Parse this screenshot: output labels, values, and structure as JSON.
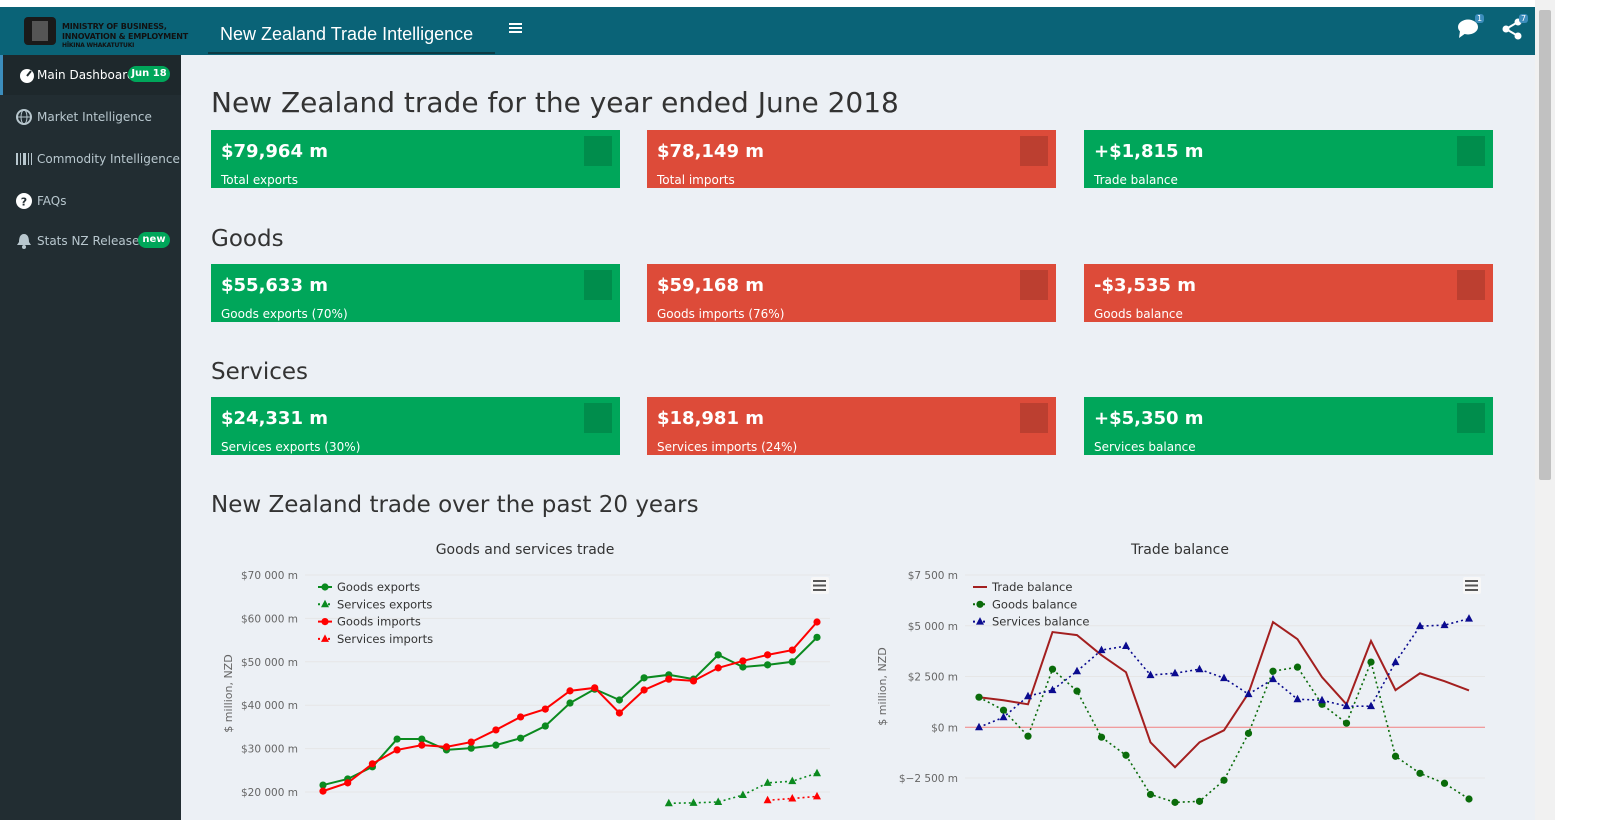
{
  "header": {
    "logo_lines": [
      "MINISTRY OF BUSINESS,",
      "INNOVATION & EMPLOYMENT",
      "HĪKINA WHAKATUTUKI"
    ],
    "app_title": "New Zealand Trade Intelligence",
    "notifications": "1",
    "shares": "7"
  },
  "sidebar": {
    "items": [
      {
        "label": "Main Dashboard",
        "badge": "Jun 18"
      },
      {
        "label": "Market Intelligence"
      },
      {
        "label": "Commodity Intelligence"
      },
      {
        "label": "FAQs"
      },
      {
        "label": "Stats NZ Releases",
        "badge": "new"
      }
    ]
  },
  "dashboard": {
    "title": "New Zealand trade for the year ended June 2018",
    "sections": [
      {
        "cards": [
          {
            "value": "$79,964 m",
            "label": "Total exports",
            "color": "#00a65a"
          },
          {
            "value": "$78,149 m",
            "label": "Total imports",
            "color": "#dd4b39"
          },
          {
            "value": "+$1,815 m",
            "label": "Trade balance",
            "color": "#00a65a"
          }
        ]
      },
      {
        "heading": "Goods",
        "cards": [
          {
            "value": "$55,633 m",
            "label": "Goods exports (70%)",
            "color": "#00a65a"
          },
          {
            "value": "$59,168 m",
            "label": "Goods imports (76%)",
            "color": "#dd4b39"
          },
          {
            "value": "-$3,535 m",
            "label": "Goods balance",
            "color": "#dd4b39"
          }
        ]
      },
      {
        "heading": "Services",
        "cards": [
          {
            "value": "$24,331 m",
            "label": "Services exports (30%)",
            "color": "#00a65a"
          },
          {
            "value": "$18,981 m",
            "label": "Services imports (24%)",
            "color": "#dd4b39"
          },
          {
            "value": "+$5,350 m",
            "label": "Services balance",
            "color": "#00a65a"
          }
        ]
      }
    ],
    "charts_heading": "New Zealand trade over the past 20 years"
  },
  "chart_data": [
    {
      "type": "line",
      "title": "Goods and services trade",
      "y_label": "$ million, NZD",
      "grid": true,
      "categories": [
        null,
        null,
        null,
        null,
        null,
        null,
        null,
        null,
        null,
        null,
        null,
        null,
        null,
        null,
        null,
        null,
        null,
        null,
        null,
        null,
        null
      ],
      "ylim": [
        20000,
        70000
      ],
      "yticks": [
        {
          "value": 20000,
          "label": "$20 000 m"
        },
        {
          "value": 30000,
          "label": "$30 000 m"
        },
        {
          "value": 40000,
          "label": "$40 000 m"
        },
        {
          "value": 50000,
          "label": "$50 000 m"
        },
        {
          "value": 60000,
          "label": "$60 000 m"
        },
        {
          "value": 70000,
          "label": "$70 000 m"
        }
      ],
      "series": [
        {
          "name": "Goods exports",
          "color": "#0b8a1f",
          "marker": "circle",
          "dash": "solid",
          "values": [
            21600,
            23000,
            25800,
            32200,
            32200,
            29700,
            30100,
            30800,
            32400,
            35200,
            40500,
            43700,
            41200,
            46300,
            47000,
            46000,
            51600,
            48800,
            49300,
            50000,
            55633
          ]
        },
        {
          "name": "Services exports",
          "color": "#0b8a1f",
          "marker": "triangle",
          "dash": "dot",
          "values": [
            null,
            null,
            null,
            null,
            null,
            null,
            null,
            null,
            null,
            null,
            null,
            null,
            null,
            null,
            17400,
            17500,
            17700,
            19300,
            22100,
            22500,
            24331
          ]
        },
        {
          "name": "Goods imports",
          "color": "#ff0000",
          "marker": "circle",
          "dash": "solid",
          "values": [
            20200,
            22100,
            26500,
            29700,
            30800,
            30400,
            31500,
            34300,
            37300,
            39100,
            43300,
            44000,
            38200,
            43500,
            46000,
            45600,
            48600,
            50200,
            51600,
            52700,
            59168
          ]
        },
        {
          "name": "Services imports",
          "color": "#ff0000",
          "marker": "triangle",
          "dash": "dot",
          "values": [
            null,
            null,
            null,
            null,
            null,
            null,
            null,
            null,
            null,
            null,
            null,
            null,
            null,
            null,
            null,
            null,
            null,
            null,
            18100,
            18500,
            18981
          ]
        }
      ]
    },
    {
      "type": "line",
      "title": "Trade balance",
      "y_label": "$ million, NZD",
      "grid": true,
      "zero_line": "#f28080",
      "categories": [
        null,
        null,
        null,
        null,
        null,
        null,
        null,
        null,
        null,
        null,
        null,
        null,
        null,
        null,
        null,
        null,
        null,
        null,
        null,
        null,
        null
      ],
      "ylim": [
        -2500,
        7500
      ],
      "yticks": [
        {
          "value": -2500,
          "label": "$−2 500 m"
        },
        {
          "value": 0,
          "label": "$0 m"
        },
        {
          "value": 2500,
          "label": "$2 500 m"
        },
        {
          "value": 5000,
          "label": "$5 000 m"
        },
        {
          "value": 7500,
          "label": "$7 500 m"
        }
      ],
      "series": [
        {
          "name": "Trade balance",
          "color": "#a31f1f",
          "marker": "none",
          "dash": "solid",
          "values": [
            1480,
            1330,
            1130,
            4690,
            4540,
            3550,
            2710,
            -740,
            -1970,
            -740,
            -150,
            1680,
            5180,
            4340,
            2470,
            1130,
            4250,
            1830,
            2660,
            2270,
            1815
          ]
        },
        {
          "name": "Goods balance",
          "color": "#0a6b0a",
          "marker": "circle",
          "dash": "dot",
          "values": [
            1480,
            840,
            -440,
            2860,
            1780,
            -490,
            -1380,
            -3310,
            -3700,
            -3650,
            -2610,
            -300,
            2760,
            2960,
            1130,
            200,
            3210,
            -1430,
            -2270,
            -2760,
            -3535
          ]
        },
        {
          "name": "Services balance",
          "color": "#0b0b8f",
          "marker": "triangle",
          "dash": "dot",
          "values": [
            0,
            490,
            1530,
            1830,
            2760,
            3800,
            4000,
            2570,
            2660,
            2860,
            2420,
            1630,
            2370,
            1380,
            1330,
            1040,
            1040,
            3210,
            4980,
            5030,
            5350
          ]
        }
      ]
    }
  ]
}
